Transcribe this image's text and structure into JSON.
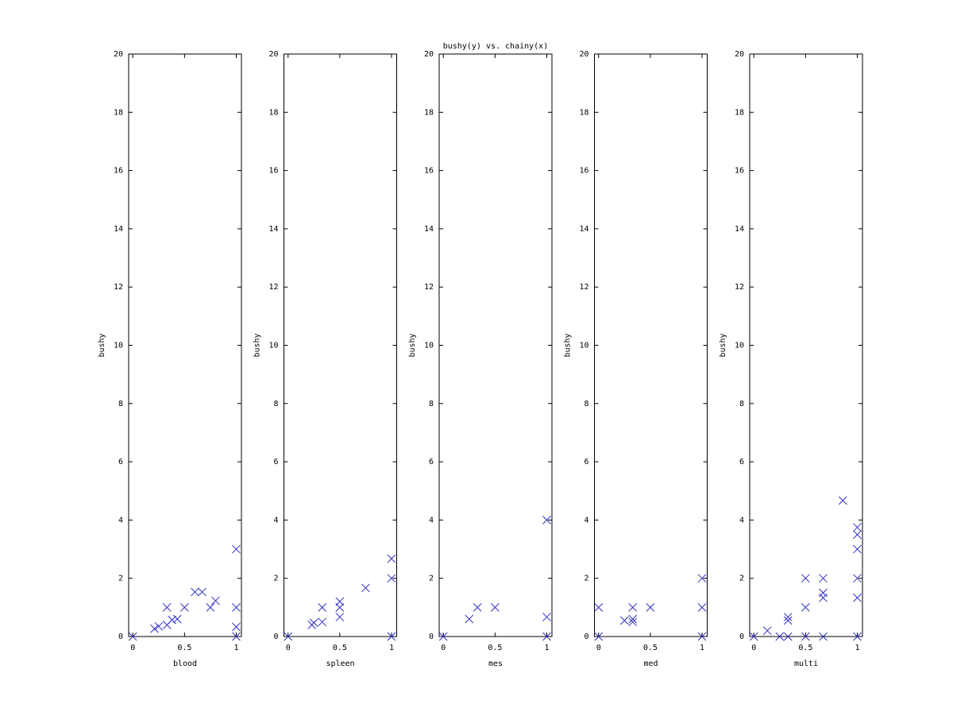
{
  "chart_data": [
    {
      "type": "scatter",
      "xlabel": "blood",
      "ylabel": "bushy",
      "color": "#3030c0",
      "x": [
        0,
        0.21,
        0.25,
        0.33,
        0.33,
        0.38,
        0.43,
        0.5,
        0.6,
        0.67,
        0.75,
        0.8,
        1,
        1,
        1,
        1
      ],
      "values": [
        0,
        0.27,
        0.35,
        1,
        0.4,
        0.57,
        0.6,
        1,
        1.53,
        1.53,
        1,
        1.23,
        3,
        1,
        0.33,
        0
      ],
      "xlim": [
        -0.04,
        1.05
      ],
      "ylim": [
        0,
        20
      ],
      "xticks": [
        0,
        0.5,
        1
      ],
      "yticks": [
        0,
        2,
        4,
        6,
        8,
        10,
        12,
        14,
        16,
        18,
        20
      ]
    },
    {
      "type": "scatter",
      "xlabel": "spleen",
      "ylabel": "bushy",
      "color": "#3030c0",
      "x": [
        0,
        0.23,
        0.25,
        0.33,
        0.33,
        0.5,
        0.5,
        0.5,
        0.75,
        1,
        1,
        1
      ],
      "values": [
        0,
        0.4,
        0.47,
        0.5,
        1,
        0.67,
        1,
        1.2,
        1.67,
        2.67,
        2,
        0
      ],
      "xlim": [
        -0.04,
        1.05
      ],
      "ylim": [
        0,
        20
      ],
      "xticks": [
        0,
        0.5,
        1
      ],
      "yticks": [
        0,
        2,
        4,
        6,
        8,
        10,
        12,
        14,
        16,
        18,
        20
      ]
    },
    {
      "type": "scatter",
      "title": "bushy(y) vs. chainy(x)",
      "xlabel": "mes",
      "ylabel": "bushy",
      "color": "#3030c0",
      "x": [
        0,
        0.25,
        0.33,
        0.5,
        1,
        1,
        1
      ],
      "values": [
        0,
        0.6,
        1,
        1,
        4,
        0.67,
        0
      ],
      "xlim": [
        -0.04,
        1.05
      ],
      "ylim": [
        0,
        20
      ],
      "xticks": [
        0,
        0.5,
        1
      ],
      "yticks": [
        0,
        2,
        4,
        6,
        8,
        10,
        12,
        14,
        16,
        18,
        20
      ]
    },
    {
      "type": "scatter",
      "xlabel": "med",
      "ylabel": "bushy",
      "color": "#3030c0",
      "x": [
        0,
        0,
        0.25,
        0.33,
        0.33,
        0.33,
        0.5,
        1,
        1,
        1
      ],
      "values": [
        1,
        0,
        0.55,
        0.5,
        0.6,
        1,
        1,
        2,
        1,
        0
      ],
      "xlim": [
        -0.04,
        1.05
      ],
      "ylim": [
        0,
        20
      ],
      "xticks": [
        0,
        0.5,
        1
      ],
      "yticks": [
        0,
        2,
        4,
        6,
        8,
        10,
        12,
        14,
        16,
        18,
        20
      ]
    },
    {
      "type": "scatter",
      "xlabel": "multi",
      "ylabel": "bushy",
      "color": "#3030c0",
      "x": [
        0,
        0.13,
        0.25,
        0.33,
        0.33,
        0.33,
        0.5,
        0.5,
        0.5,
        0.67,
        0.67,
        0.67,
        0.67,
        0.86,
        1,
        1,
        1,
        1,
        1,
        1
      ],
      "values": [
        0,
        0.2,
        0,
        0,
        0.55,
        0.67,
        2,
        1,
        0,
        2,
        1.5,
        1.33,
        0,
        4.67,
        3.75,
        3.5,
        3,
        2,
        1.33,
        0
      ],
      "xlim": [
        -0.04,
        1.05
      ],
      "ylim": [
        0,
        20
      ],
      "xticks": [
        0,
        0.5,
        1
      ],
      "yticks": [
        0,
        2,
        4,
        6,
        8,
        10,
        12,
        14,
        16,
        18,
        20
      ]
    }
  ]
}
